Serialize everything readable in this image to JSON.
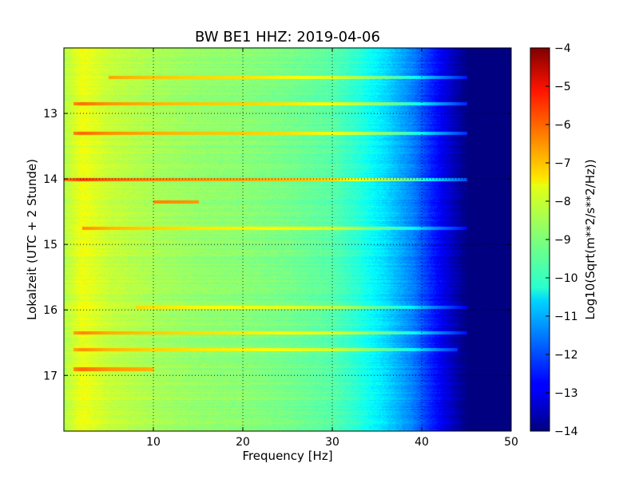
{
  "chart_data": {
    "type": "heatmap",
    "title": "BW BE1 HHZ: 2019-04-06",
    "xlabel": "Frequency [Hz]",
    "ylabel": "Lokalzeit (UTC + 2 Stunde)",
    "colorbar_label": "Log10(Sqrt(m**2/s**2/Hz))",
    "xlim": [
      0,
      50
    ],
    "ylim": [
      17.85,
      12.0
    ],
    "clim": [
      -14,
      -4
    ],
    "colormap": "jet",
    "grid": true,
    "x_ticks": [
      10,
      20,
      30,
      40,
      50
    ],
    "y_ticks": [
      13,
      14,
      15,
      16,
      17
    ],
    "colorbar_ticks": [
      -4,
      -5,
      -6,
      -7,
      -8,
      -9,
      -10,
      -11,
      -12,
      -13,
      -14
    ],
    "x_tick_labels": [
      "10",
      "20",
      "30",
      "40",
      "50"
    ],
    "y_tick_labels": [
      "13",
      "14",
      "15",
      "16",
      "17"
    ],
    "colorbar_tick_labels": [
      "−4",
      "−5",
      "−6",
      "−7",
      "−8",
      "−9",
      "−10",
      "−11",
      "−12",
      "−13",
      "−14"
    ],
    "spectral_profile": {
      "frequency_hz": [
        0,
        2,
        5,
        10,
        15,
        20,
        25,
        30,
        33,
        36,
        39,
        41,
        43,
        45,
        50
      ],
      "log10_amplitude": [
        -8.5,
        -7.9,
        -8.3,
        -8.6,
        -8.8,
        -8.9,
        -9.1,
        -9.4,
        -9.9,
        -10.6,
        -11.5,
        -12.4,
        -13.2,
        -14.0,
        -14.0
      ]
    },
    "bright_bands": [
      {
        "time": 12.45,
        "freq_range": [
          5,
          45
        ],
        "log10_amplitude": -7.8
      },
      {
        "time": 12.85,
        "freq_range": [
          1,
          45
        ],
        "log10_amplitude": -7.6
      },
      {
        "time": 13.3,
        "freq_range": [
          1,
          46
        ],
        "log10_amplitude": -7.5
      },
      {
        "time": 14.0,
        "freq_range": [
          0,
          46
        ],
        "log10_amplitude": -7.0
      },
      {
        "time": 14.35,
        "freq_range": [
          10,
          15
        ],
        "log10_amplitude": -7.0
      },
      {
        "time": 14.75,
        "freq_range": [
          2,
          45
        ],
        "log10_amplitude": -8.0
      },
      {
        "time": 15.95,
        "freq_range": [
          8,
          45
        ],
        "log10_amplitude": -8.2
      },
      {
        "time": 16.35,
        "freq_range": [
          1,
          45
        ],
        "log10_amplitude": -7.9
      },
      {
        "time": 16.6,
        "freq_range": [
          1,
          44
        ],
        "log10_amplitude": -8.0
      },
      {
        "time": 16.9,
        "freq_range": [
          1,
          10
        ],
        "log10_amplitude": -7.6
      }
    ]
  }
}
